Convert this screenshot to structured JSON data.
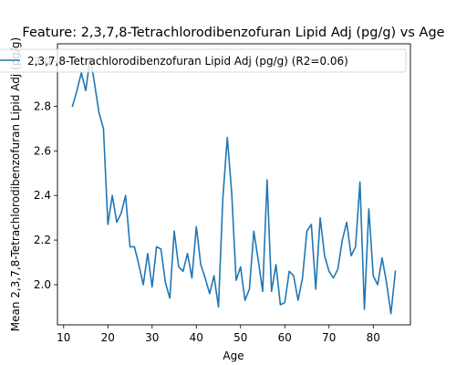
{
  "chart_data": {
    "type": "line",
    "title": "Feature: 2,3,7,8-Tetrachlorodibenzofuran Lipid Adj (pg/g) vs Age",
    "xlabel": "Age",
    "ylabel": "Mean 2,3,7,8-Tetrachlorodibenzofuran Lipid Adj (pg/g)",
    "xlim": [
      8.6,
      88.4
    ],
    "ylim": [
      1.82,
      3.08
    ],
    "x_ticks": [
      10,
      20,
      30,
      40,
      50,
      60,
      70,
      80
    ],
    "y_ticks": [
      2.0,
      2.2,
      2.4,
      2.6,
      2.8,
      3.0
    ],
    "y_tick_labels": [
      "2.0",
      "2.2",
      "2.4",
      "2.6",
      "2.8",
      "3.0"
    ],
    "grid": false,
    "legend_position": "top",
    "series": [
      {
        "name": "2,3,7,8-Tetrachlorodibenzofuran Lipid Adj (pg/g) (R2=0.06)",
        "color": "#1f77b4",
        "x": [
          12,
          13,
          14,
          15,
          16,
          17,
          18,
          19,
          20,
          21,
          22,
          23,
          24,
          25,
          26,
          27,
          28,
          29,
          30,
          31,
          32,
          33,
          34,
          35,
          36,
          37,
          38,
          39,
          40,
          41,
          42,
          43,
          44,
          45,
          46,
          47,
          48,
          49,
          50,
          51,
          52,
          53,
          54,
          55,
          56,
          57,
          58,
          59,
          60,
          61,
          62,
          63,
          64,
          65,
          66,
          67,
          68,
          69,
          70,
          71,
          72,
          73,
          74,
          75,
          76,
          77,
          78,
          79,
          80,
          81,
          82,
          83,
          84,
          85
        ],
        "y": [
          2.8,
          2.87,
          2.95,
          2.87,
          3.02,
          2.9,
          2.77,
          2.7,
          2.27,
          2.4,
          2.28,
          2.32,
          2.4,
          2.17,
          2.17,
          2.09,
          2.0,
          2.14,
          1.99,
          2.17,
          2.16,
          2.01,
          1.94,
          2.24,
          2.08,
          2.06,
          2.14,
          2.03,
          2.26,
          2.09,
          2.03,
          1.96,
          2.04,
          1.9,
          2.39,
          2.66,
          2.41,
          2.02,
          2.08,
          1.93,
          1.98,
          2.24,
          2.11,
          1.97,
          2.47,
          1.97,
          2.09,
          1.91,
          1.92,
          2.06,
          2.04,
          1.93,
          2.03,
          2.24,
          2.27,
          1.98,
          2.3,
          2.13,
          2.06,
          2.03,
          2.07,
          2.2,
          2.28,
          2.13,
          2.17,
          2.46,
          1.89,
          2.34,
          2.04,
          2.0,
          2.12,
          2.01,
          1.87,
          2.06
        ]
      }
    ]
  }
}
